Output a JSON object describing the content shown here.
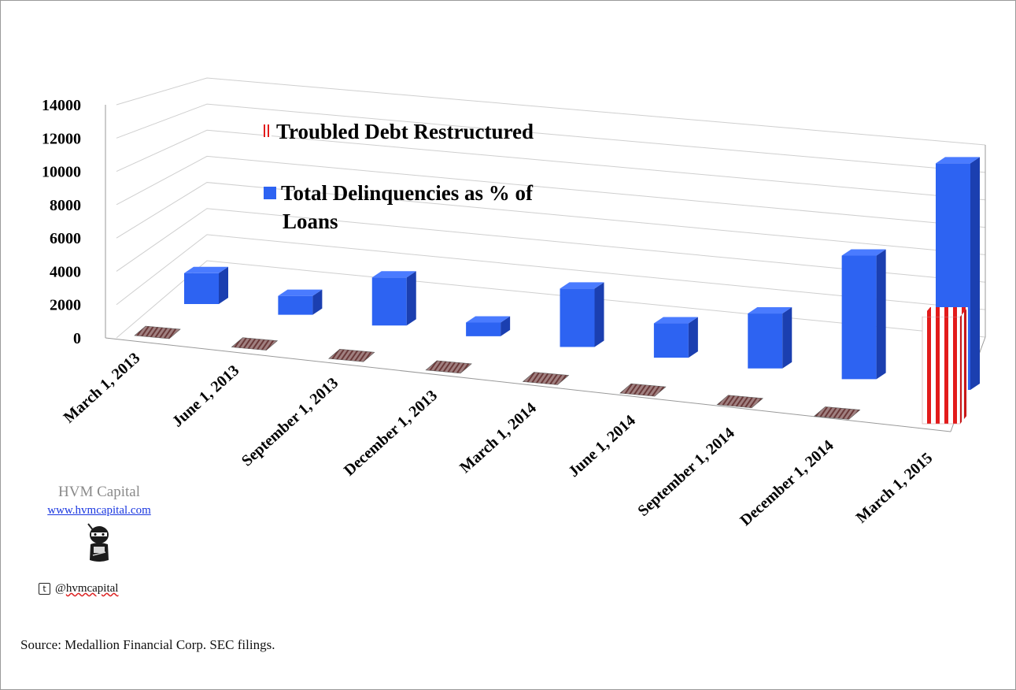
{
  "chart_data": {
    "type": "bar",
    "categories": [
      "March 1, 2013",
      "June 1, 2013",
      "September 1, 2013",
      "December 1, 2013",
      "March 1, 2014",
      "June 1, 2014",
      "September 1, 2014",
      "December 1, 2014",
      "March 1, 2015"
    ],
    "series": [
      {
        "name": "Troubled Debt Restructured",
        "values": [
          0,
          0,
          0,
          0,
          0,
          0,
          0,
          0,
          8000
        ],
        "color": "#e21b1b"
      },
      {
        "name": "Total Delinquencies as % of Loans",
        "values": [
          1800,
          1100,
          2800,
          800,
          3400,
          2000,
          3200,
          7200,
          13200
        ],
        "color": "#2d63f2"
      }
    ],
    "y_ticks": [
      "0",
      "2000",
      "4000",
      "6000",
      "8000",
      "10000",
      "12000",
      "14000"
    ],
    "ylim": [
      0,
      14000
    ],
    "grid": true,
    "legend_placement": "top-left inside plot"
  },
  "legend": {
    "tdr_label": "Troubled Debt Restructured",
    "delinq_label_line1": "Total Delinquencies as % of",
    "delinq_label_line2": "Loans"
  },
  "brand": {
    "name": "HVM Capital",
    "url": "www.hvmcapital.com",
    "twitter_glyph": "t",
    "twitter_handle_prefix": "@",
    "twitter_handle": "hvmcapital"
  },
  "icons": {
    "ninja": "ninja-mascot-icon",
    "twitter": "twitter-icon"
  },
  "source": "Source: Medallion Financial Corp. SEC filings."
}
